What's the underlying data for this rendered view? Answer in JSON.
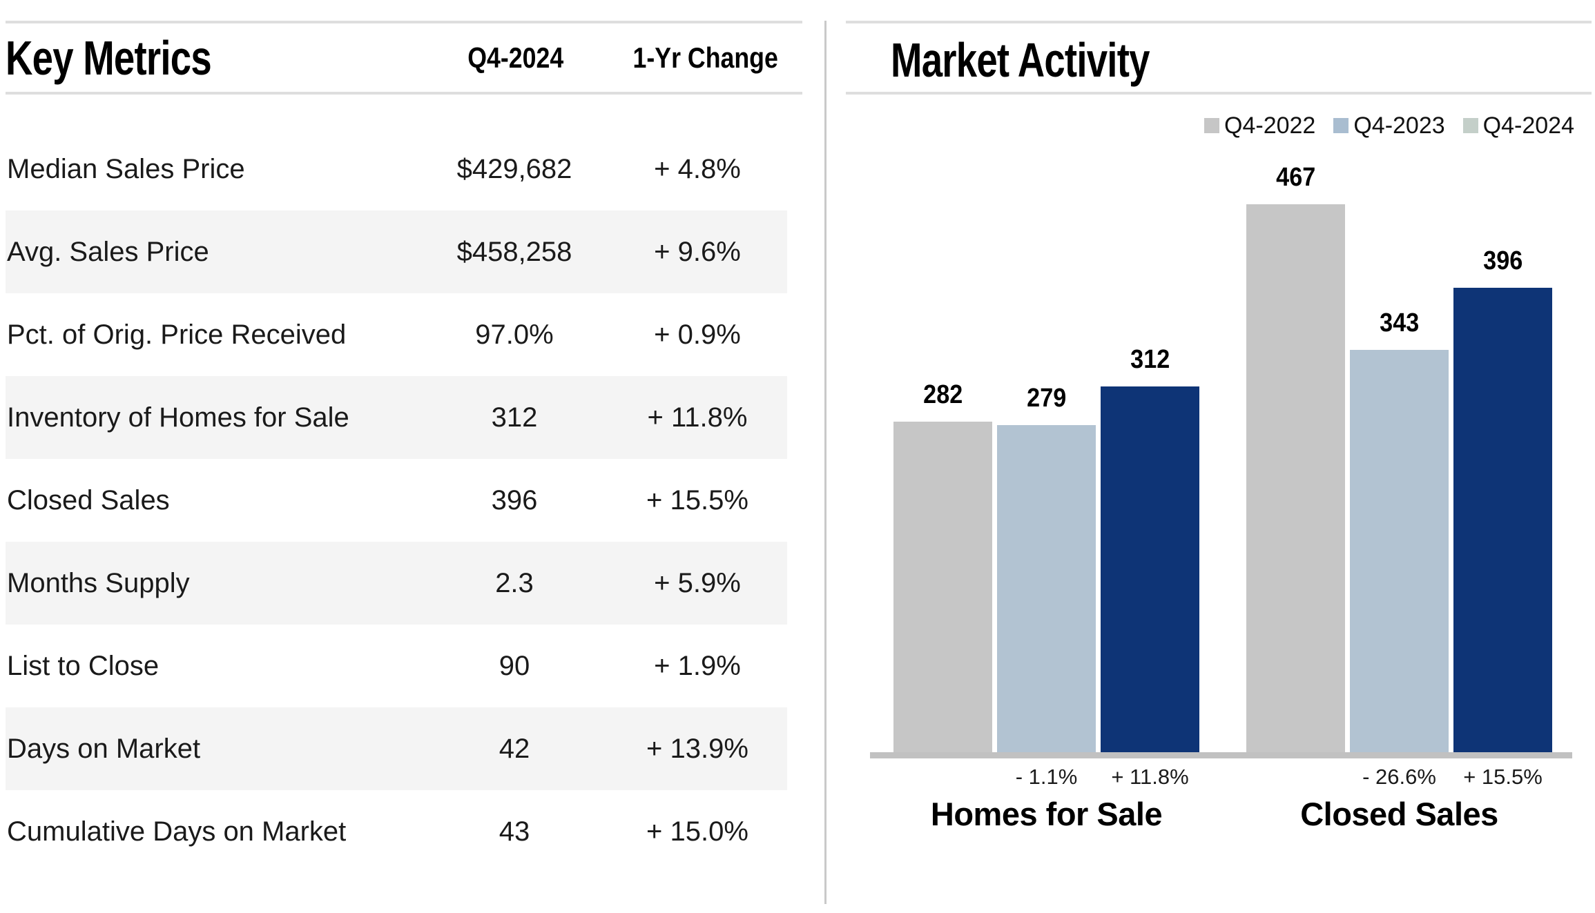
{
  "key_metrics": {
    "title": "Key Metrics",
    "columns": {
      "period": "Q4-2024",
      "change": "1-Yr Change"
    },
    "rows": [
      {
        "label": "Median Sales Price",
        "value": "$429,682",
        "change": "+ 4.8%"
      },
      {
        "label": "Avg. Sales Price",
        "value": "$458,258",
        "change": "+ 9.6%"
      },
      {
        "label": "Pct. of Orig. Price Received",
        "value": "97.0%",
        "change": "+ 0.9%"
      },
      {
        "label": "Inventory of Homes for Sale",
        "value": "312",
        "change": "+ 11.8%"
      },
      {
        "label": "Closed Sales",
        "value": "396",
        "change": "+ 15.5%"
      },
      {
        "label": "Months Supply",
        "value": "2.3",
        "change": "+ 5.9%"
      },
      {
        "label": "List to Close",
        "value": "90",
        "change": "+ 1.9%"
      },
      {
        "label": "Days on Market",
        "value": "42",
        "change": "+ 13.9%"
      },
      {
        "label": "Cumulative Days on Market",
        "value": "43",
        "change": "+ 15.0%"
      }
    ]
  },
  "market_activity": {
    "title": "Market Activity",
    "legend": [
      {
        "label": "Q4-2022",
        "swatch_color": "#c6c6c6"
      },
      {
        "label": "Q4-2023",
        "swatch_color": "#a9bdd0"
      },
      {
        "label": "Q4-2024",
        "swatch_color": "#c4cfc9"
      }
    ],
    "chart_data": {
      "type": "bar",
      "categories": [
        "Homes for Sale",
        "Closed Sales"
      ],
      "series": [
        {
          "name": "Q4-2022",
          "values": [
            282,
            467
          ],
          "color": "#c6c6c6"
        },
        {
          "name": "Q4-2023",
          "values": [
            279,
            343
          ],
          "color": "#b2c3d2"
        },
        {
          "name": "Q4-2024",
          "values": [
            312,
            396
          ],
          "color": "#0e3476"
        }
      ],
      "bar_value_labels": [
        [
          "282",
          "279",
          "312"
        ],
        [
          "467",
          "343",
          "396"
        ]
      ],
      "change_labels": [
        {
          "category": "Homes for Sale",
          "q4_2023_change": "- 1.1%",
          "q4_2024_change": "+ 11.8%"
        },
        {
          "category": "Closed Sales",
          "q4_2023_change": "- 26.6%",
          "q4_2024_change": "+ 15.5%"
        }
      ],
      "title": "Market Activity",
      "xlabel": "",
      "ylabel": "",
      "axis": "none",
      "grid": false,
      "legend_position": "top-right",
      "baseline_color": "#c1c1c1"
    }
  }
}
